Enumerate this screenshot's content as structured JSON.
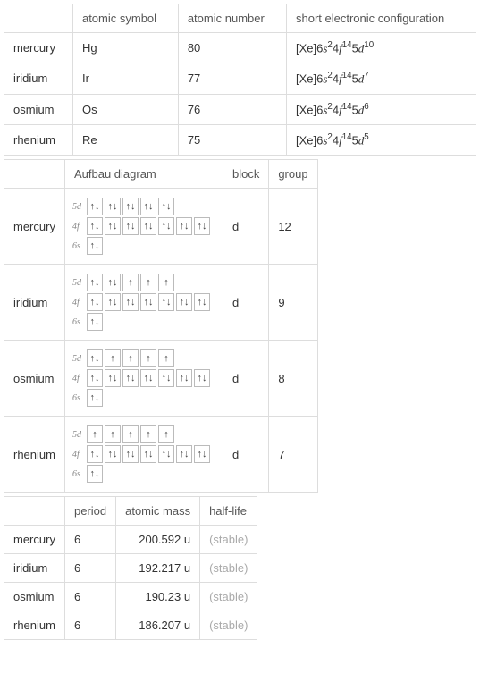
{
  "table1": {
    "headers": [
      "",
      "atomic symbol",
      "atomic number",
      "short electronic configuration"
    ],
    "rows": [
      {
        "name": "mercury",
        "symbol": "Hg",
        "number": "80",
        "conf_prefix": "[Xe]6",
        "s": "2",
        "f": "14",
        "d": "10"
      },
      {
        "name": "iridium",
        "symbol": "Ir",
        "number": "77",
        "conf_prefix": "[Xe]6",
        "s": "2",
        "f": "14",
        "d": "7"
      },
      {
        "name": "osmium",
        "symbol": "Os",
        "number": "76",
        "conf_prefix": "[Xe]6",
        "s": "2",
        "f": "14",
        "d": "6"
      },
      {
        "name": "rhenium",
        "symbol": "Re",
        "number": "75",
        "conf_prefix": "[Xe]6",
        "s": "2",
        "f": "14",
        "d": "5"
      }
    ]
  },
  "table2": {
    "headers": [
      "",
      "Aufbau diagram",
      "block",
      "group"
    ],
    "rows": [
      {
        "name": "mercury",
        "block": "d",
        "group": "12",
        "d5": [
          2,
          2,
          2,
          2,
          2
        ],
        "f4": [
          2,
          2,
          2,
          2,
          2,
          2,
          2
        ],
        "s6": [
          2
        ]
      },
      {
        "name": "iridium",
        "block": "d",
        "group": "9",
        "d5": [
          2,
          2,
          1,
          1,
          1
        ],
        "f4": [
          2,
          2,
          2,
          2,
          2,
          2,
          2
        ],
        "s6": [
          2
        ]
      },
      {
        "name": "osmium",
        "block": "d",
        "group": "8",
        "d5": [
          2,
          1,
          1,
          1,
          1
        ],
        "f4": [
          2,
          2,
          2,
          2,
          2,
          2,
          2
        ],
        "s6": [
          2
        ]
      },
      {
        "name": "rhenium",
        "block": "d",
        "group": "7",
        "d5": [
          1,
          1,
          1,
          1,
          1
        ],
        "f4": [
          2,
          2,
          2,
          2,
          2,
          2,
          2
        ],
        "s6": [
          2
        ]
      }
    ],
    "sublabels": {
      "d": "5d",
      "f": "4f",
      "s": "6s"
    }
  },
  "table3": {
    "headers": [
      "",
      "period",
      "atomic mass",
      "half-life"
    ],
    "rows": [
      {
        "name": "mercury",
        "period": "6",
        "mass": "200.592 u",
        "halflife": "(stable)"
      },
      {
        "name": "iridium",
        "period": "6",
        "mass": "192.217 u",
        "halflife": "(stable)"
      },
      {
        "name": "osmium",
        "period": "6",
        "mass": "190.23 u",
        "halflife": "(stable)"
      },
      {
        "name": "rhenium",
        "period": "6",
        "mass": "186.207 u",
        "halflife": "(stable)"
      }
    ]
  },
  "colors": {
    "border": "#dddddd",
    "text": "#333333",
    "muted": "#aaaaaa",
    "background": "#ffffff"
  }
}
